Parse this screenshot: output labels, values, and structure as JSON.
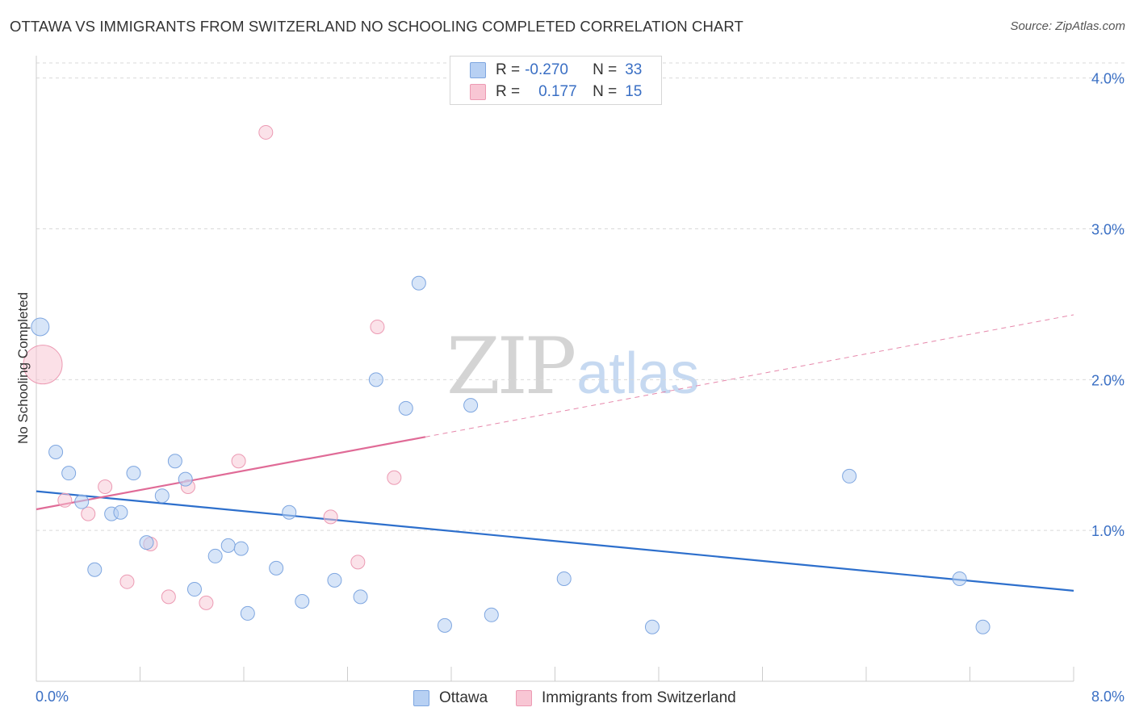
{
  "title": "OTTAWA VS IMMIGRANTS FROM SWITZERLAND NO SCHOOLING COMPLETED CORRELATION CHART",
  "source": "Source: ZipAtlas.com",
  "watermark": {
    "zip": "ZIP",
    "atlas": "atlas"
  },
  "colors": {
    "ottawa_fill": "#b7d0f3",
    "ottawa_stroke": "#7ea6e0",
    "ottawa_line": "#2d6fcc",
    "swiss_fill": "#f8c6d4",
    "swiss_stroke": "#ec9ab3",
    "swiss_line": "#e06b97",
    "grid": "#d9d9d9",
    "tick_text": "#3a6fc4"
  },
  "legend": {
    "rows": [
      {
        "r_label": "R =",
        "r_value": "-0.270",
        "n_label": "N =",
        "n_value": "33"
      },
      {
        "r_label": "R =",
        "r_value": "0.177",
        "n_label": "N =",
        "n_value": "15"
      }
    ]
  },
  "bottom_legend": {
    "ottawa": "Ottawa",
    "swiss": "Immigrants from Switzerland"
  },
  "chart_data": {
    "type": "scatter",
    "title": "OTTAWA VS IMMIGRANTS FROM SWITZERLAND NO SCHOOLING COMPLETED CORRELATION CHART",
    "xlabel": "",
    "ylabel": "No Schooling Completed",
    "xlim": [
      0,
      8
    ],
    "ylim": [
      0,
      4.1
    ],
    "x_tick_labels": [
      "0.0%",
      "8.0%"
    ],
    "y_ticks": [
      1.0,
      2.0,
      3.0,
      4.0
    ],
    "y_tick_labels": [
      "1.0%",
      "2.0%",
      "3.0%",
      "4.0%"
    ],
    "grid": "horizontal dashed",
    "legend_position": "top-center",
    "series": [
      {
        "name": "Ottawa",
        "r": -0.27,
        "n": 33,
        "points": [
          [
            0.03,
            2.35
          ],
          [
            0.15,
            1.52
          ],
          [
            0.25,
            1.38
          ],
          [
            0.35,
            1.19
          ],
          [
            0.45,
            0.74
          ],
          [
            0.58,
            1.11
          ],
          [
            0.65,
            1.12
          ],
          [
            0.75,
            1.38
          ],
          [
            0.85,
            0.92
          ],
          [
            0.97,
            1.23
          ],
          [
            1.07,
            1.46
          ],
          [
            1.15,
            1.34
          ],
          [
            1.22,
            0.61
          ],
          [
            1.38,
            0.83
          ],
          [
            1.48,
            0.9
          ],
          [
            1.58,
            0.88
          ],
          [
            1.63,
            0.45
          ],
          [
            1.85,
            0.75
          ],
          [
            1.95,
            1.12
          ],
          [
            2.05,
            0.53
          ],
          [
            2.3,
            0.67
          ],
          [
            2.5,
            0.56
          ],
          [
            2.62,
            2.0
          ],
          [
            2.85,
            1.81
          ],
          [
            2.95,
            2.64
          ],
          [
            3.15,
            0.37
          ],
          [
            3.35,
            1.83
          ],
          [
            3.51,
            0.44
          ],
          [
            4.07,
            0.68
          ],
          [
            4.75,
            0.36
          ],
          [
            6.27,
            1.36
          ],
          [
            7.12,
            0.68
          ],
          [
            7.3,
            0.36
          ]
        ],
        "trend": {
          "x": [
            0,
            8
          ],
          "y": [
            1.26,
            0.6
          ]
        }
      },
      {
        "name": "Immigrants from Switzerland",
        "r": 0.177,
        "n": 15,
        "points": [
          [
            0.05,
            2.1
          ],
          [
            0.22,
            1.2
          ],
          [
            0.4,
            1.11
          ],
          [
            0.53,
            1.29
          ],
          [
            0.7,
            0.66
          ],
          [
            0.88,
            0.91
          ],
          [
            1.02,
            0.56
          ],
          [
            1.17,
            1.29
          ],
          [
            1.31,
            0.52
          ],
          [
            1.56,
            1.46
          ],
          [
            1.77,
            3.64
          ],
          [
            2.27,
            1.09
          ],
          [
            2.48,
            0.79
          ],
          [
            2.63,
            2.35
          ],
          [
            2.76,
            1.35
          ]
        ],
        "trend": {
          "x": [
            0,
            3.0
          ],
          "y": [
            1.14,
            1.62
          ]
        },
        "trend_extension": {
          "x": [
            3.0,
            8
          ],
          "y": [
            1.62,
            2.43
          ]
        }
      }
    ]
  }
}
